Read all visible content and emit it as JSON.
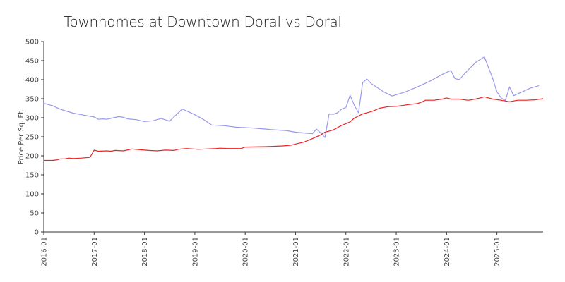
{
  "chart_data": {
    "type": "line",
    "title": "Townhomes at Downtown Doral vs Doral",
    "xlabel": "",
    "ylabel": "Price Per Sq. Ft.",
    "ylim": [
      0,
      500
    ],
    "xlim": [
      "2016-01",
      "2025-12"
    ],
    "yticks": [
      "0",
      "50",
      "100",
      "150",
      "200",
      "250",
      "300",
      "350",
      "400",
      "450",
      "500"
    ],
    "xticks": [
      "2016-01",
      "2017-01",
      "2018-01",
      "2019-01",
      "2020-01",
      "2021-01",
      "2022-01",
      "2023-01",
      "2024-01",
      "2025-01"
    ],
    "grid": false,
    "legend": "none",
    "series": [
      {
        "color": "#9999ee",
        "points": [
          [
            "2016-01",
            338
          ],
          [
            "2016-03",
            332
          ],
          [
            "2016-05",
            322
          ],
          [
            "2016-08",
            312
          ],
          [
            "2016-10",
            308
          ],
          [
            "2017-01",
            302
          ],
          [
            "2017-02",
            296
          ],
          [
            "2017-03",
            297
          ],
          [
            "2017-04",
            296
          ],
          [
            "2017-06",
            301
          ],
          [
            "2017-07",
            303
          ],
          [
            "2017-08",
            301
          ],
          [
            "2017-09",
            297
          ],
          [
            "2017-11",
            295
          ],
          [
            "2018-01",
            290
          ],
          [
            "2018-03",
            292
          ],
          [
            "2018-05",
            298
          ],
          [
            "2018-07",
            291
          ],
          [
            "2018-08",
            302
          ],
          [
            "2018-10",
            323
          ],
          [
            "2019-01",
            308
          ],
          [
            "2019-03",
            296
          ],
          [
            "2019-05",
            281
          ],
          [
            "2019-08",
            279
          ],
          [
            "2019-11",
            275
          ],
          [
            "2020-03",
            273
          ],
          [
            "2020-07",
            269
          ],
          [
            "2020-11",
            266
          ],
          [
            "2021-01",
            262
          ],
          [
            "2021-03",
            260
          ],
          [
            "2021-05",
            258
          ],
          [
            "2021-06",
            270
          ],
          [
            "2021-07",
            260
          ],
          [
            "2021-08",
            248
          ],
          [
            "2021-09",
            310
          ],
          [
            "2021-10",
            309
          ],
          [
            "2021-11",
            313
          ],
          [
            "2021-12",
            323
          ],
          [
            "2022-01",
            327
          ],
          [
            "2022-02",
            359
          ],
          [
            "2022-03",
            333
          ],
          [
            "2022-04",
            313
          ],
          [
            "2022-05",
            392
          ],
          [
            "2022-06",
            402
          ],
          [
            "2022-07",
            390
          ],
          [
            "2022-08",
            383
          ],
          [
            "2022-10",
            368
          ],
          [
            "2022-12",
            357
          ],
          [
            "2023-03",
            367
          ],
          [
            "2023-06",
            381
          ],
          [
            "2023-09",
            396
          ],
          [
            "2023-12",
            414
          ],
          [
            "2024-02",
            424
          ],
          [
            "2024-03",
            403
          ],
          [
            "2024-04",
            400
          ],
          [
            "2024-06",
            424
          ],
          [
            "2024-08",
            446
          ],
          [
            "2024-10",
            460
          ],
          [
            "2024-12",
            403
          ],
          [
            "2025-01",
            368
          ],
          [
            "2025-02",
            352
          ],
          [
            "2025-03",
            345
          ],
          [
            "2025-04",
            381
          ],
          [
            "2025-05",
            358
          ],
          [
            "2025-07",
            368
          ],
          [
            "2025-09",
            378
          ],
          [
            "2025-11",
            384
          ]
        ]
      },
      {
        "color": "#ee2222",
        "points": [
          [
            "2016-01",
            188
          ],
          [
            "2016-03",
            188
          ],
          [
            "2016-04",
            189
          ],
          [
            "2016-05",
            192
          ],
          [
            "2016-06",
            192
          ],
          [
            "2016-07",
            194
          ],
          [
            "2016-08",
            193
          ],
          [
            "2016-10",
            194
          ],
          [
            "2016-12",
            196
          ],
          [
            "2017-01",
            215
          ],
          [
            "2017-02",
            212
          ],
          [
            "2017-04",
            213
          ],
          [
            "2017-05",
            212
          ],
          [
            "2017-06",
            214
          ],
          [
            "2017-08",
            213
          ],
          [
            "2017-10",
            218
          ],
          [
            "2017-12",
            216
          ],
          [
            "2018-02",
            214
          ],
          [
            "2018-04",
            213
          ],
          [
            "2018-06",
            215
          ],
          [
            "2018-08",
            214
          ],
          [
            "2018-09",
            217
          ],
          [
            "2018-11",
            219
          ],
          [
            "2019-02",
            217
          ],
          [
            "2019-06",
            219
          ],
          [
            "2019-07",
            220
          ],
          [
            "2019-09",
            219
          ],
          [
            "2019-12",
            219
          ],
          [
            "2020-01",
            223
          ],
          [
            "2020-06",
            224
          ],
          [
            "2020-10",
            226
          ],
          [
            "2020-12",
            228
          ],
          [
            "2021-01",
            231
          ],
          [
            "2021-03",
            236
          ],
          [
            "2021-05",
            245
          ],
          [
            "2021-07",
            255
          ],
          [
            "2021-08",
            262
          ],
          [
            "2021-10",
            268
          ],
          [
            "2021-12",
            280
          ],
          [
            "2022-02",
            289
          ],
          [
            "2022-03",
            299
          ],
          [
            "2022-05",
            310
          ],
          [
            "2022-07",
            316
          ],
          [
            "2022-08",
            320
          ],
          [
            "2022-09",
            325
          ],
          [
            "2022-11",
            329
          ],
          [
            "2023-01",
            330
          ],
          [
            "2023-03",
            333
          ],
          [
            "2023-04",
            335
          ],
          [
            "2023-06",
            337
          ],
          [
            "2023-07",
            341
          ],
          [
            "2023-08",
            346
          ],
          [
            "2023-10",
            346
          ],
          [
            "2023-12",
            349
          ],
          [
            "2024-01",
            352
          ],
          [
            "2024-02",
            349
          ],
          [
            "2024-04",
            349
          ],
          [
            "2024-06",
            346
          ],
          [
            "2024-07",
            347
          ],
          [
            "2024-09",
            352
          ],
          [
            "2024-10",
            355
          ],
          [
            "2024-11",
            352
          ],
          [
            "2024-12",
            349
          ],
          [
            "2025-02",
            346
          ],
          [
            "2025-04",
            342
          ],
          [
            "2025-05",
            344
          ],
          [
            "2025-06",
            346
          ],
          [
            "2025-08",
            346
          ],
          [
            "2025-10",
            347
          ],
          [
            "2025-12",
            350
          ]
        ]
      }
    ]
  }
}
